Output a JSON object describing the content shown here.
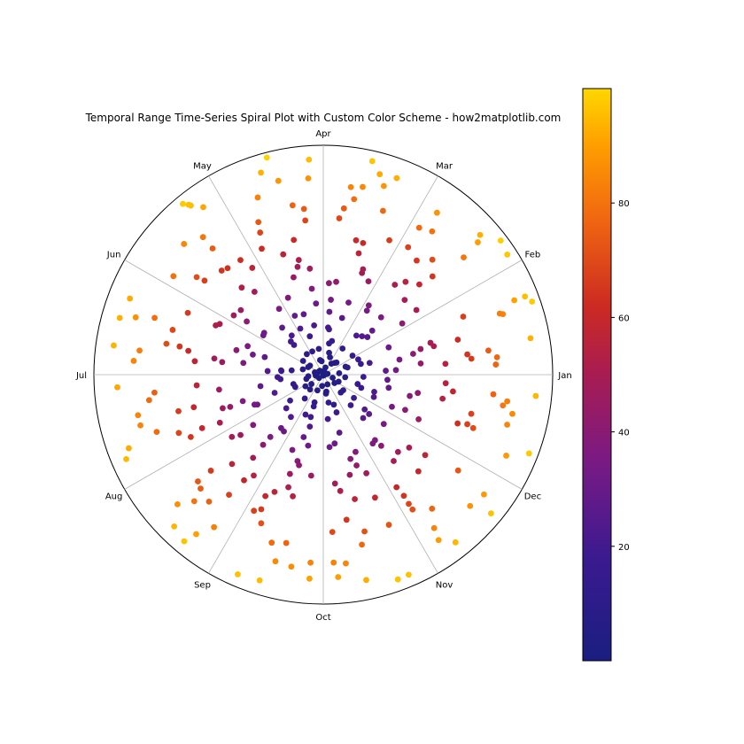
{
  "chart_data": {
    "type": "scatter",
    "projection": "polar",
    "title": "Temporal Range Time-Series Spiral Plot with Custom Color Scheme - how2matplotlib.com",
    "angular_tick_labels": [
      "Jan",
      "Feb",
      "Mar",
      "Apr",
      "May",
      "Jun",
      "Jul",
      "Aug",
      "Sep",
      "Oct",
      "Nov",
      "Dec"
    ],
    "radial_range": [
      0,
      100
    ],
    "radial_tick_labels_visible": false,
    "angular_grid": true,
    "radial_grid": false,
    "colormap": "plasma-like (dark blue → purple → red → orange → yellow)",
    "colormap_stops": [
      "#1a1e80",
      "#4b1a96",
      "#8a1a7a",
      "#c2262a",
      "#e8521c",
      "#ff8c00",
      "#ffd700"
    ],
    "color_value_range": [
      0,
      100
    ],
    "colorbar": {
      "position": "right",
      "ticks": [
        20,
        40,
        60,
        80
      ],
      "tick_labels": [
        "20",
        "40",
        "60",
        "80"
      ],
      "range": [
        0,
        100
      ]
    },
    "series": [
      {
        "description": "Points spiral outward over time; color equals radius value. 365 daily points arranged in 12 month-aligned spokes with jitter.",
        "points_per_month_approx": 30,
        "r_min": 0,
        "r_max": 100
      }
    ]
  }
}
